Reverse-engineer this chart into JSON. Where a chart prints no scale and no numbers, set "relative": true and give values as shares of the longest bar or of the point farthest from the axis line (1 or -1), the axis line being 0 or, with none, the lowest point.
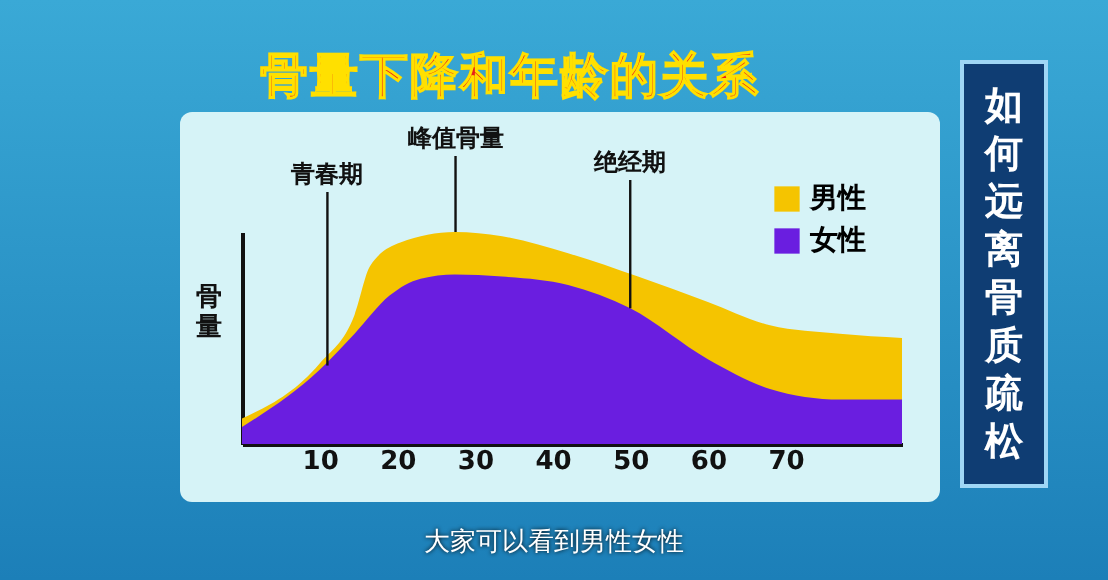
{
  "chart_data": {
    "type": "area",
    "title": "骨量下降和年龄的关系",
    "ylabel": "骨量",
    "relative": true,
    "xlim": [
      0,
      85
    ],
    "xticks": [
      10,
      20,
      30,
      40,
      50,
      60,
      70
    ],
    "legend": "top right",
    "series": [
      {
        "name": "男性",
        "color": "#f5c400",
        "x": [
          0,
          10,
          14.5,
          16.5,
          20.4,
          27.4,
          33.5,
          42,
          51,
          60,
          68,
          77,
          85
        ],
        "values": [
          0.12,
          0.38,
          0.61,
          0.84,
          0.95,
          1.0,
          0.98,
          0.9,
          0.79,
          0.67,
          0.56,
          0.52,
          0.5
        ]
      },
      {
        "name": "女性",
        "color": "#6a1ee0",
        "x": [
          0,
          10,
          14.5,
          19,
          23,
          27.4,
          33.5,
          42,
          50,
          60,
          68,
          77,
          85
        ],
        "values": [
          0.08,
          0.35,
          0.52,
          0.7,
          0.78,
          0.8,
          0.79,
          0.75,
          0.64,
          0.4,
          0.26,
          0.21,
          0.21
        ]
      }
    ],
    "annotations": [
      {
        "text": "青春期",
        "x": 11,
        "y": 0.37
      },
      {
        "text": "峰值骨量",
        "x": 27.5,
        "y": 1.0
      },
      {
        "text": "绝经期",
        "x": 50,
        "y": 0.64
      },
      "如何远离骨质疏松",
      "大家可以看到男性女性"
    ]
  }
}
